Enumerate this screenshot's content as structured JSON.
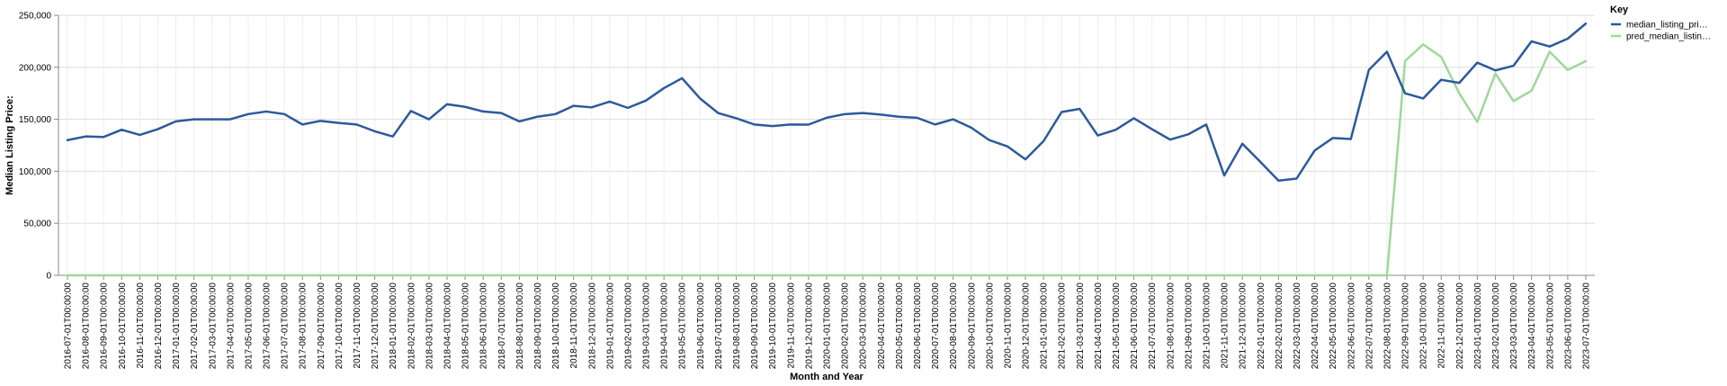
{
  "chart_data": {
    "type": "line",
    "xlabel": "Month and Year",
    "ylabel": "Median Listing Price:",
    "ylim": [
      0,
      250000
    ],
    "yticks": [
      0,
      50000,
      100000,
      150000,
      200000,
      250000
    ],
    "ytick_labels": [
      "0",
      "50,000",
      "100,000",
      "150,000",
      "200,000",
      "250,000"
    ],
    "grid": true,
    "legend": {
      "title": "Key",
      "placement": "top-right",
      "entries": [
        {
          "label": "median_listing_pri…",
          "color": "#2c5a9c"
        },
        {
          "label": "pred_median_listin…",
          "color": "#9fd89a"
        }
      ]
    },
    "x": [
      "2016-07-01T00:00:00",
      "2016-08-01T00:00:00",
      "2016-09-01T00:00:00",
      "2016-10-01T00:00:00",
      "2016-11-01T00:00:00",
      "2016-12-01T00:00:00",
      "2017-01-01T00:00:00",
      "2017-02-01T00:00:00",
      "2017-03-01T00:00:00",
      "2017-04-01T00:00:00",
      "2017-05-01T00:00:00",
      "2017-06-01T00:00:00",
      "2017-07-01T00:00:00",
      "2017-08-01T00:00:00",
      "2017-09-01T00:00:00",
      "2017-10-01T00:00:00",
      "2017-11-01T00:00:00",
      "2017-12-01T00:00:00",
      "2018-01-01T00:00:00",
      "2018-02-01T00:00:00",
      "2018-03-01T00:00:00",
      "2018-04-01T00:00:00",
      "2018-05-01T00:00:00",
      "2018-06-01T00:00:00",
      "2018-07-01T00:00:00",
      "2018-08-01T00:00:00",
      "2018-09-01T00:00:00",
      "2018-10-01T00:00:00",
      "2018-11-01T00:00:00",
      "2018-12-01T00:00:00",
      "2019-01-01T00:00:00",
      "2019-02-01T00:00:00",
      "2019-03-01T00:00:00",
      "2019-04-01T00:00:00",
      "2019-05-01T00:00:00",
      "2019-06-01T00:00:00",
      "2019-07-01T00:00:00",
      "2019-08-01T00:00:00",
      "2019-09-01T00:00:00",
      "2019-10-01T00:00:00",
      "2019-11-01T00:00:00",
      "2019-12-01T00:00:00",
      "2020-01-01T00:00:00",
      "2020-02-01T00:00:00",
      "2020-03-01T00:00:00",
      "2020-04-01T00:00:00",
      "2020-05-01T00:00:00",
      "2020-06-01T00:00:00",
      "2020-07-01T00:00:00",
      "2020-08-01T00:00:00",
      "2020-09-01T00:00:00",
      "2020-10-01T00:00:00",
      "2020-11-01T00:00:00",
      "2020-12-01T00:00:00",
      "2021-01-01T00:00:00",
      "2021-02-01T00:00:00",
      "2021-03-01T00:00:00",
      "2021-04-01T00:00:00",
      "2021-05-01T00:00:00",
      "2021-06-01T00:00:00",
      "2021-07-01T00:00:00",
      "2021-08-01T00:00:00",
      "2021-09-01T00:00:00",
      "2021-10-01T00:00:00",
      "2021-11-01T00:00:00",
      "2021-12-01T00:00:00",
      "2022-01-01T00:00:00",
      "2022-02-01T00:00:00",
      "2022-03-01T00:00:00",
      "2022-04-01T00:00:00",
      "2022-05-01T00:00:00",
      "2022-06-01T00:00:00",
      "2022-07-01T00:00:00",
      "2022-08-01T00:00:00",
      "2022-09-01T00:00:00",
      "2022-10-01T00:00:00",
      "2022-11-01T00:00:00",
      "2022-12-01T00:00:00",
      "2023-01-01T00:00:00",
      "2023-02-01T00:00:00",
      "2023-03-01T00:00:00",
      "2023-04-01T00:00:00",
      "2023-05-01T00:00:00",
      "2023-06-01T00:00:00",
      "2023-07-01T00:00:00"
    ],
    "series": [
      {
        "name": "median_listing_pri…",
        "color": "#2c5a9c",
        "values": [
          130000,
          133500,
          133000,
          140000,
          135000,
          140500,
          148000,
          150000,
          150000,
          150000,
          155000,
          157500,
          155000,
          145000,
          148500,
          146500,
          145000,
          138500,
          133500,
          158000,
          150000,
          164500,
          162000,
          157500,
          156000,
          148000,
          152500,
          155000,
          163000,
          161500,
          167000,
          161000,
          168000,
          180000,
          189500,
          170000,
          156000,
          151000,
          145000,
          143500,
          145000,
          144900,
          151500,
          155000,
          156000,
          154500,
          152500,
          151500,
          145000,
          150000,
          142000,
          130000,
          124000,
          111500,
          129000,
          157000,
          160000,
          134500,
          140000,
          151000,
          140500,
          130500,
          135500,
          145000,
          96000,
          126500,
          109000,
          91000,
          93000,
          120000,
          132000,
          131000,
          197500,
          215000,
          175000,
          170000,
          188000,
          185000,
          204500,
          197000,
          201500,
          225000,
          220000,
          227500,
          242000
        ]
      },
      {
        "name": "pred_median_listin…",
        "color": "#9fd89a",
        "values": [
          0,
          0,
          0,
          0,
          0,
          0,
          0,
          0,
          0,
          0,
          0,
          0,
          0,
          0,
          0,
          0,
          0,
          0,
          0,
          0,
          0,
          0,
          0,
          0,
          0,
          0,
          0,
          0,
          0,
          0,
          0,
          0,
          0,
          0,
          0,
          0,
          0,
          0,
          0,
          0,
          0,
          0,
          0,
          0,
          0,
          0,
          0,
          0,
          0,
          0,
          0,
          0,
          0,
          0,
          0,
          0,
          0,
          0,
          0,
          0,
          0,
          0,
          0,
          0,
          0,
          0,
          0,
          0,
          0,
          0,
          0,
          0,
          0,
          0,
          206000,
          222000,
          210000,
          175000,
          147500,
          194000,
          167500,
          177500,
          215000,
          197500,
          206000
        ]
      }
    ]
  }
}
